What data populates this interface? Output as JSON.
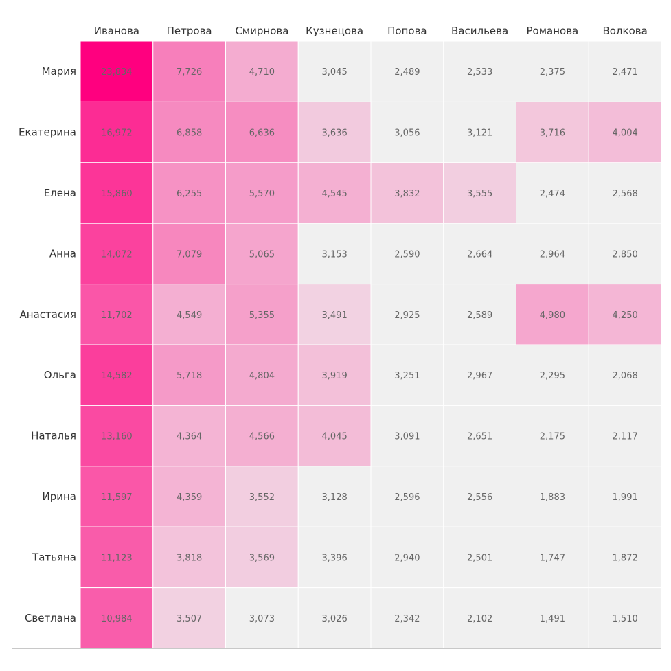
{
  "chart_data": {
    "type": "heatmap",
    "title": "",
    "xlabel": "",
    "ylabel": "",
    "columns": [
      "Иванова",
      "Петрова",
      "Смирнова",
      "Кузнецова",
      "Попова",
      "Васильева",
      "Романова",
      "Волкова"
    ],
    "rows": [
      "Мария",
      "Екатерина",
      "Елена",
      "Анна",
      "Анастасия",
      "Ольга",
      "Наталья",
      "Ирина",
      "Татьяна",
      "Светлана"
    ],
    "values": [
      [
        23834,
        7726,
        4710,
        3045,
        2489,
        2533,
        2375,
        2471
      ],
      [
        16972,
        6858,
        6636,
        3636,
        3056,
        3121,
        3716,
        4004
      ],
      [
        15860,
        6255,
        5570,
        4545,
        3832,
        3555,
        2474,
        2568
      ],
      [
        14072,
        7079,
        5065,
        3153,
        2590,
        2664,
        2964,
        2850
      ],
      [
        11702,
        4549,
        5355,
        3491,
        2925,
        2589,
        4980,
        4250
      ],
      [
        14582,
        5718,
        4804,
        3919,
        3251,
        2967,
        2295,
        2068
      ],
      [
        13160,
        4364,
        4566,
        4045,
        3091,
        2651,
        2175,
        2117
      ],
      [
        11597,
        4359,
        3552,
        3128,
        2596,
        2556,
        1883,
        1991
      ],
      [
        11123,
        3818,
        3569,
        3396,
        2940,
        2501,
        1747,
        1872
      ],
      [
        10984,
        3507,
        3073,
        3026,
        2342,
        2102,
        1491,
        1510
      ]
    ],
    "labels": [
      [
        "23,834",
        "7,726",
        "4,710",
        "3,045",
        "2,489",
        "2,533",
        "2,375",
        "2,471"
      ],
      [
        "16,972",
        "6,858",
        "6,636",
        "3,636",
        "3,056",
        "3,121",
        "3,716",
        "4,004"
      ],
      [
        "15,860",
        "6,255",
        "5,570",
        "4,545",
        "3,832",
        "3,555",
        "2,474",
        "2,568"
      ],
      [
        "14,072",
        "7,079",
        "5,065",
        "3,153",
        "2,590",
        "2,664",
        "2,964",
        "2,850"
      ],
      [
        "11,702",
        "4,549",
        "5,355",
        "3,491",
        "2,925",
        "2,589",
        "4,980",
        "4,250"
      ],
      [
        "14,582",
        "5,718",
        "4,804",
        "3,919",
        "3,251",
        "2,967",
        "2,295",
        "2,068"
      ],
      [
        "13,160",
        "4,364",
        "4,566",
        "4,045",
        "3,091",
        "2,651",
        "2,175",
        "2,117"
      ],
      [
        "11,597",
        "4,359",
        "3,552",
        "3,128",
        "2,596",
        "2,556",
        "1,883",
        "1,991"
      ],
      [
        "11,123",
        "3,818",
        "3,569",
        "3,396",
        "2,940",
        "2,501",
        "1,747",
        "1,872"
      ],
      [
        "10,984",
        "3,507",
        "3,073",
        "3,026",
        "2,342",
        "2,102",
        "1,491",
        "1,510"
      ]
    ],
    "color_scale": {
      "low": "#f0f0f0",
      "high": "#ff007f"
    },
    "grid": false,
    "legend": "none"
  }
}
